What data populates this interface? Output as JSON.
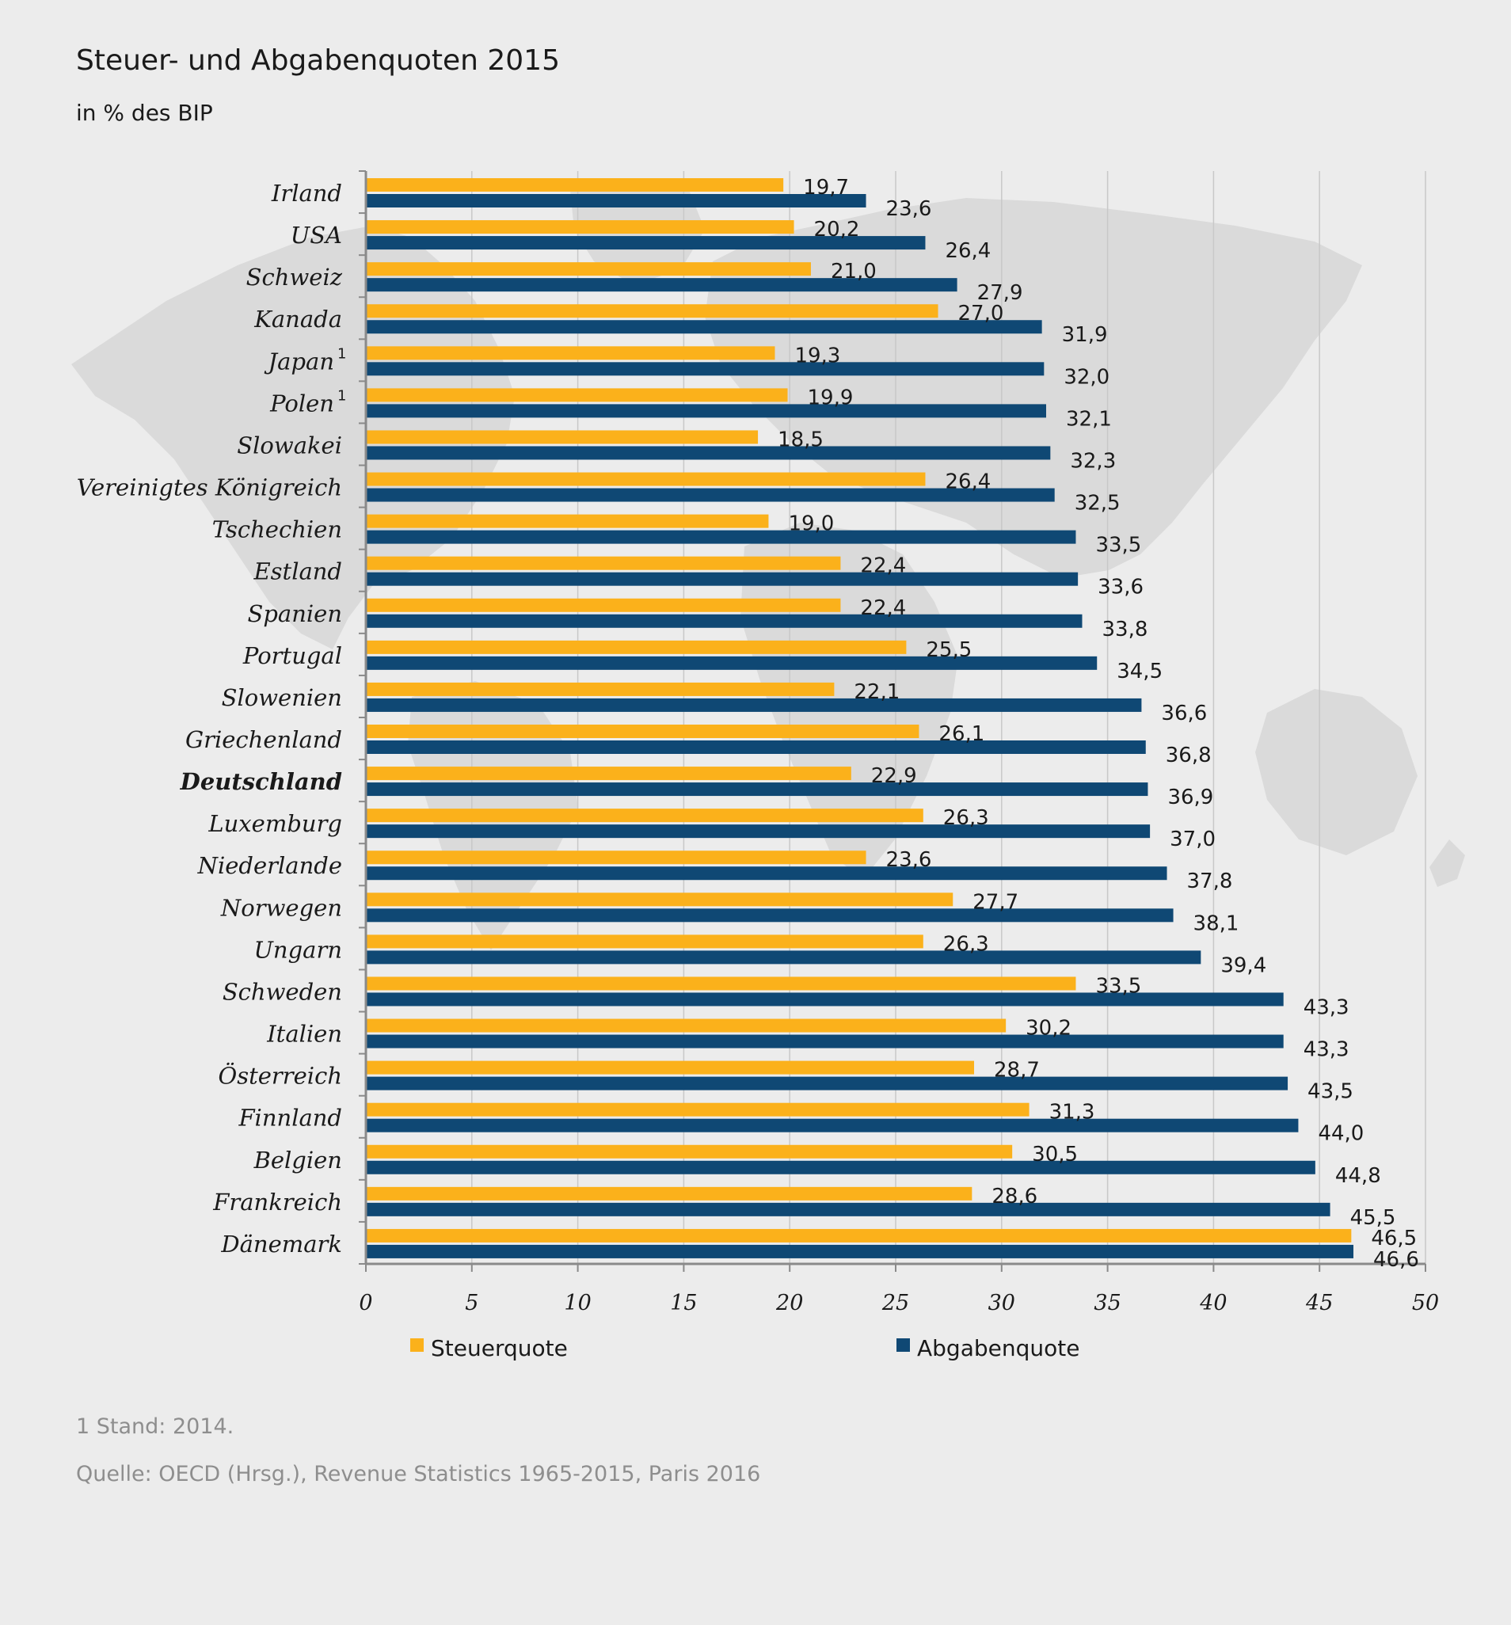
{
  "title": "Steuer- und Abgabenquoten 2015",
  "subtitle": "in % des BIP",
  "footnote": "1 Stand: 2014.",
  "source": "Quelle: OECD (Hrsg.), Revenue Statistics 1965-2015, Paris 2016",
  "colors": {
    "steuer": "#fbb11b",
    "abgaben": "#0f4874",
    "grid": "#c8c8c8",
    "axis": "#8a8a8a",
    "background": "#ececec",
    "map": "#d9d9d9"
  },
  "chart_data": {
    "type": "bar",
    "orientation": "horizontal",
    "categories": [
      "Irland",
      "USA",
      "Schweiz",
      "Kanada",
      "Japan",
      "Polen",
      "Slowakei",
      "Vereinigtes Königreich",
      "Tschechien",
      "Estland",
      "Spanien",
      "Portugal",
      "Slowenien",
      "Griechenland",
      "Deutschland",
      "Luxemburg",
      "Niederlande",
      "Norwegen",
      "Ungarn",
      "Schweden",
      "Italien",
      "Österreich",
      "Finnland",
      "Belgien",
      "Frankreich",
      "Dänemark"
    ],
    "category_superscripts": [
      "",
      "",
      "",
      "",
      "1",
      "1",
      "",
      "",
      "",
      "",
      "",
      "",
      "",
      "",
      "",
      "",
      "",
      "",
      "",
      "",
      "",
      "",
      "",
      "",
      "",
      ""
    ],
    "bold_category": "Deutschland",
    "series": [
      {
        "name": "Steuerquote",
        "values": [
          19.7,
          20.2,
          21.0,
          27.0,
          19.3,
          19.9,
          18.5,
          26.4,
          19.0,
          22.4,
          22.4,
          25.5,
          22.1,
          26.1,
          22.9,
          26.3,
          23.6,
          27.7,
          26.3,
          33.5,
          30.2,
          28.7,
          31.3,
          30.5,
          28.6,
          46.5
        ],
        "labels": [
          "19,7",
          "20,2",
          "21,0",
          "27,0",
          "19,3",
          "19,9",
          "18,5",
          "26,4",
          "19,0",
          "22,4",
          "22,4",
          "25,5",
          "22,1",
          "26,1",
          "22,9",
          "26,3",
          "23,6",
          "27,7",
          "26,3",
          "33,5",
          "30,2",
          "28,7",
          "31,3",
          "30,5",
          "28,6",
          "46,5"
        ]
      },
      {
        "name": "Abgabenquote",
        "values": [
          23.6,
          26.4,
          27.9,
          31.9,
          32.0,
          32.1,
          32.3,
          32.5,
          33.5,
          33.6,
          33.8,
          34.5,
          36.6,
          36.8,
          36.9,
          37.0,
          37.8,
          38.1,
          39.4,
          43.3,
          43.3,
          43.5,
          44.0,
          44.8,
          45.5,
          46.6
        ],
        "labels": [
          "23,6",
          "26,4",
          "27,9",
          "31,9",
          "32,0",
          "32,1",
          "32,3",
          "32,5",
          "33,5",
          "33,6",
          "33,8",
          "34,5",
          "36,6",
          "36,8",
          "36,9",
          "37,0",
          "37,8",
          "38,1",
          "39,4",
          "43,3",
          "43,3",
          "43,5",
          "44,0",
          "44,8",
          "45,5",
          "46,6"
        ]
      }
    ],
    "xlim": [
      0,
      50
    ],
    "xticks": [
      0,
      5,
      10,
      15,
      20,
      25,
      30,
      35,
      40,
      45,
      50
    ],
    "grid": true,
    "legend_position": "bottom"
  }
}
